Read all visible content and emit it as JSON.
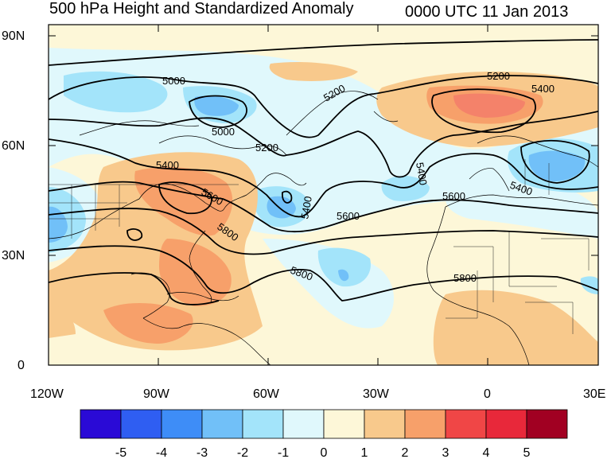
{
  "title": "500 hPa Height and Standardized Anomaly",
  "datetime": "0000 UTC 11 Jan 2013",
  "latitude_labels": [
    "90N",
    "60N",
    "30N",
    "0"
  ],
  "longitude_labels": [
    "120W",
    "90W",
    "60W",
    "30W",
    "0",
    "30E"
  ],
  "contour_labels": [
    "5000",
    "5000",
    "5200",
    "5200",
    "5200",
    "5400",
    "5400",
    "5400",
    "5400",
    "5600",
    "5600",
    "5600",
    "5800",
    "5800",
    "5800",
    "5400"
  ],
  "colorbar": {
    "tick_labels": [
      "-5",
      "-4",
      "-3",
      "-2",
      "-1",
      "0",
      "1",
      "2",
      "3",
      "4",
      "5"
    ],
    "colors": [
      "#2a0ad6",
      "#2f5ef2",
      "#3e8df7",
      "#71c0f8",
      "#a3e4fa",
      "#e0f8fc",
      "#fdf7d8",
      "#f8c98c",
      "#f7a06a",
      "#f04646",
      "#e8283a",
      "#a10022"
    ]
  },
  "colors": {
    "ocean_neutral": "#fdf7d8",
    "land_neutral": "#fdf7d8"
  }
}
